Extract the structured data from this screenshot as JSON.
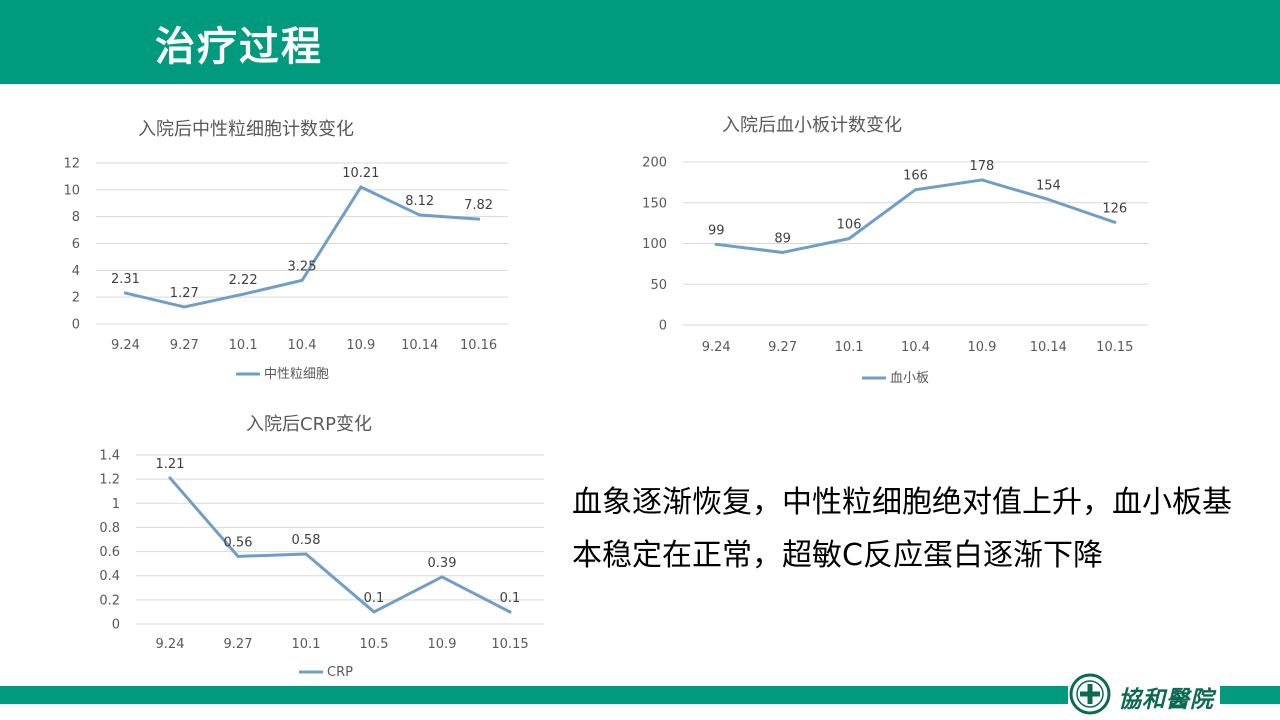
{
  "slide": {
    "title": "治疗过程",
    "summary": "血象逐渐恢复，中性粒细胞绝对值上升，血小板基本稳定在正常，超敏C反应蛋白逐渐下降",
    "logo_text": "協和醫院"
  },
  "colors": {
    "header": "#009a7e",
    "series_line": "#6f9ec8",
    "grid": "#d9d9d9",
    "axis_text": "#595959"
  },
  "chart_data": [
    {
      "type": "line",
      "title": "入院后中性粒细胞计数变化",
      "categories": [
        "9.24",
        "9.27",
        "10.1",
        "10.4",
        "10.9",
        "10.14",
        "10.16"
      ],
      "series": [
        {
          "name": "中性粒细胞",
          "values": [
            2.31,
            1.27,
            2.22,
            3.25,
            10.21,
            8.12,
            7.82
          ]
        }
      ],
      "data_labels": [
        "2.31",
        "1.27",
        "2.22",
        "3.25",
        "10.21",
        "8.12",
        "7.82"
      ],
      "yticks": [
        "0",
        "2",
        "4",
        "6",
        "8",
        "10",
        "12"
      ],
      "ylim": [
        0,
        12
      ],
      "grid": true,
      "legend": "bottom"
    },
    {
      "type": "line",
      "title": "入院后血小板计数变化",
      "categories": [
        "9.24",
        "9.27",
        "10.1",
        "10.4",
        "10.9",
        "10.14",
        "10.15"
      ],
      "series": [
        {
          "name": "血小板",
          "values": [
            99,
            89,
            106,
            166,
            178,
            154,
            126
          ]
        }
      ],
      "data_labels": [
        "99",
        "89",
        "106",
        "166",
        "178",
        "154",
        "126"
      ],
      "yticks": [
        "0",
        "50",
        "100",
        "150",
        "200"
      ],
      "ylim": [
        0,
        200
      ],
      "grid": true,
      "legend": "bottom"
    },
    {
      "type": "line",
      "title": "入院后CRP变化",
      "categories": [
        "9.24",
        "9.27",
        "10.1",
        "10.5",
        "10.9",
        "10.15"
      ],
      "series": [
        {
          "name": "CRP",
          "values": [
            1.21,
            0.56,
            0.58,
            0.1,
            0.39,
            0.1
          ]
        }
      ],
      "data_labels": [
        "1.21",
        "0.56",
        "0.58",
        "0.1",
        "0.39",
        "0.1"
      ],
      "yticks": [
        "0",
        "0.2",
        "0.4",
        "0.6",
        "0.8",
        "1",
        "1.2",
        "1.4"
      ],
      "ylim": [
        0,
        1.4
      ],
      "grid": true,
      "legend": "bottom"
    }
  ]
}
